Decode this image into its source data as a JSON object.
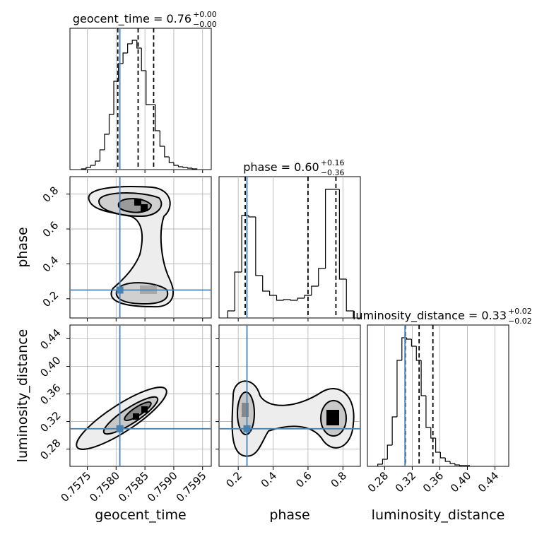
{
  "chart_data": {
    "type": "corner",
    "line_color": "#000000",
    "truth_color": "#4682b4",
    "grid": true,
    "parameters": [
      {
        "name": "geocent_time",
        "title": "geocent_time = 0.76",
        "title_sup": "+0.00",
        "title_sub": "−0.00",
        "lim": [
          0.7572,
          0.75965
        ],
        "ticks": [
          0.7575,
          {
            "value": 0.758,
            "label": "0.7580"
          },
          0.7585,
          {
            "value": 0.759,
            "label": "0.7590"
          },
          0.7595
        ],
        "truth": 0.758065,
        "quantiles": [
          0.758029,
          0.758382,
          0.758651
        ],
        "bins": [
          0.7574,
          0.75748,
          0.75756,
          0.75764,
          0.75772,
          0.7578,
          0.75788,
          0.75796,
          0.75804,
          0.75812,
          0.7582,
          0.75828,
          0.75836,
          0.75844,
          0.75852,
          0.7586,
          0.75868,
          0.75876,
          0.75884,
          0.75892,
          0.759,
          0.75908,
          0.75916,
          0.75924,
          0.75932,
          0.7594
        ],
        "counts": [
          1,
          3,
          6,
          12,
          28,
          50,
          78,
          125,
          150,
          165,
          178,
          183,
          172,
          140,
          92,
          92,
          55,
          33,
          18,
          10,
          6,
          4,
          3,
          2,
          1
        ],
        "hist_ylim": [
          0,
          200
        ]
      },
      {
        "name": "phase",
        "title": "phase = 0.60",
        "title_sup": "+0.16",
        "title_sub": "−0.36",
        "lim": [
          0.09,
          0.9
        ],
        "ticks": [
          0.2,
          0.4,
          0.6,
          0.8
        ],
        "truth": 0.25,
        "quantiles": [
          0.24,
          0.6,
          0.76
        ],
        "bins": [
          0.14,
          0.18,
          0.22,
          0.26,
          0.3,
          0.34,
          0.38,
          0.42,
          0.46,
          0.5,
          0.54,
          0.58,
          0.62,
          0.66,
          0.7,
          0.74,
          0.78,
          0.82,
          0.86
        ],
        "counts": [
          10,
          65,
          145,
          143,
          60,
          38,
          32,
          25,
          26,
          25,
          28,
          32,
          45,
          70,
          182,
          182,
          55,
          10
        ],
        "hist_ylim": [
          0,
          200
        ]
      },
      {
        "name": "luminosity_distance",
        "title": "luminosity_distance = 0.33",
        "title_sup": "+0.02",
        "title_sub": "−0.02",
        "lim": [
          0.255,
          0.46
        ],
        "ticks": [
          0.28,
          0.32,
          0.36,
          {
            "value": 0.4,
            "label": "0.40"
          },
          0.44
        ],
        "truth": 0.3095,
        "quantiles": [
          0.31,
          0.33,
          0.35
        ],
        "bins": [
          0.27,
          0.277,
          0.284,
          0.291,
          0.298,
          0.305,
          0.312,
          0.319,
          0.326,
          0.333,
          0.34,
          0.347,
          0.354,
          0.361,
          0.368,
          0.375,
          0.382,
          0.389,
          0.396,
          0.403
        ],
        "counts": [
          3,
          10,
          30,
          70,
          150,
          182,
          180,
          170,
          150,
          100,
          55,
          40,
          20,
          12,
          7,
          4,
          2,
          1,
          1
        ],
        "hist_ylim": [
          0,
          200
        ]
      }
    ]
  }
}
